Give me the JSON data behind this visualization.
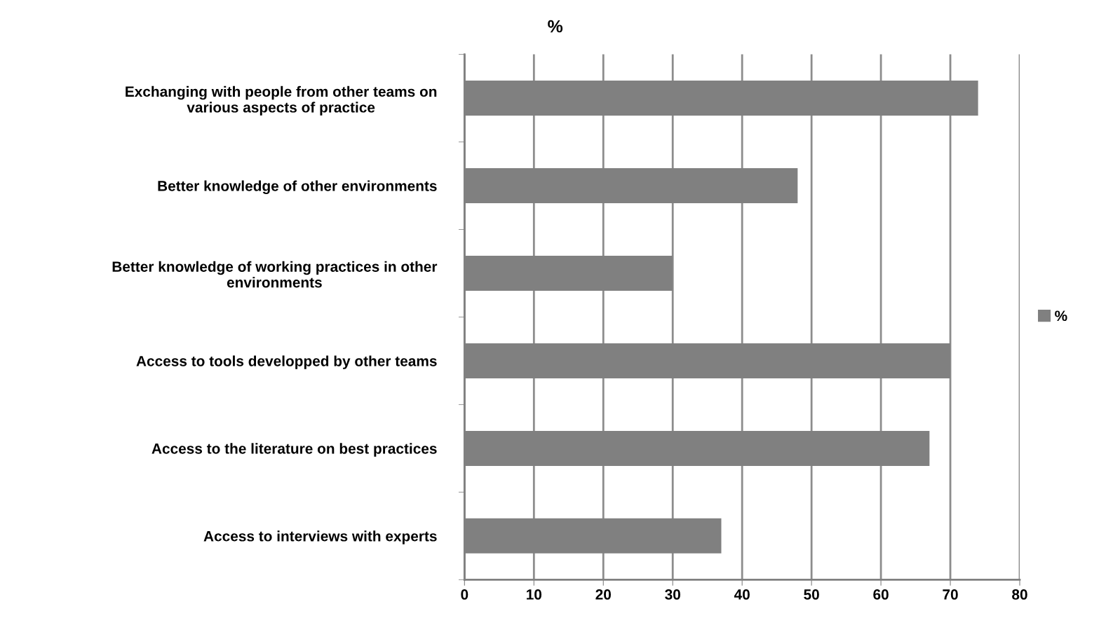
{
  "chart_data": {
    "type": "bar",
    "orientation": "horizontal",
    "title": "%",
    "categories": [
      "Exchanging with people from other teams on\nvarious aspects of practice",
      "Better knowledge of other environments",
      "Better knowledge of working practices in other\nenvironments",
      "Access to tools developped by other teams",
      "Access to the literature on best practices",
      "Access to interviews with experts"
    ],
    "series": [
      {
        "name": "%",
        "color": "#808080",
        "values": [
          74,
          48,
          30,
          70,
          67,
          37
        ]
      }
    ],
    "xlim": [
      0,
      80
    ],
    "xticks": [
      0,
      10,
      20,
      30,
      40,
      50,
      60,
      70,
      80
    ],
    "grid": "x",
    "legend": "right"
  }
}
